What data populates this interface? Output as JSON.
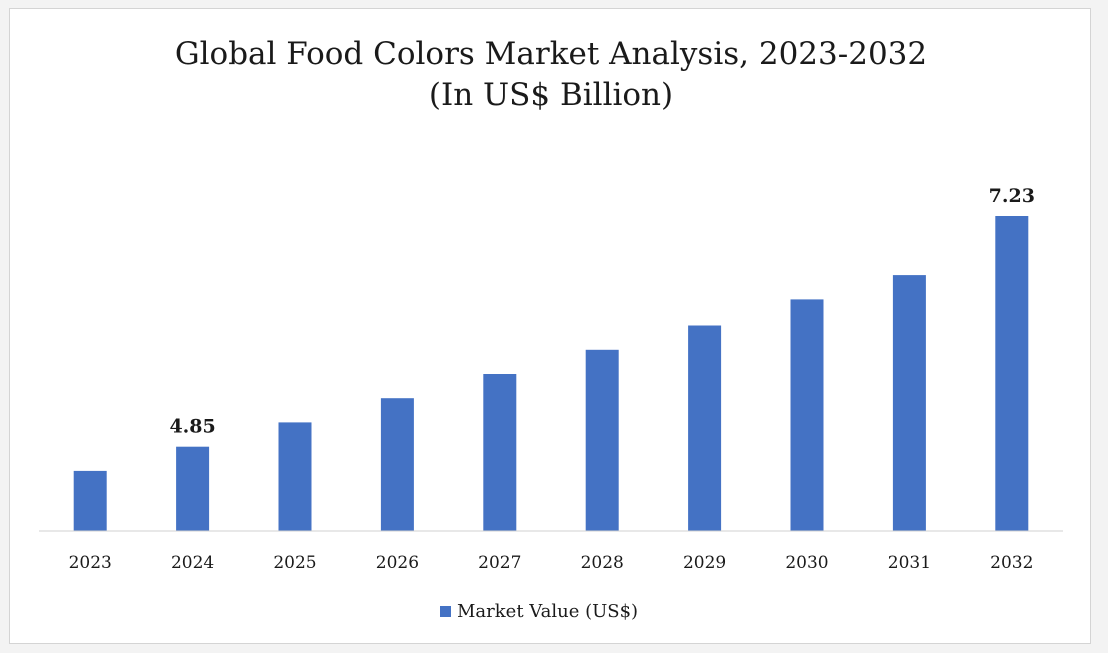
{
  "chart_data": {
    "type": "bar",
    "title": "Global Food Colors Market Analysis, 2023-2032",
    "subtitle": "(In US$ Billion)",
    "categories": [
      "2023",
      "2024",
      "2025",
      "2026",
      "2027",
      "2028",
      "2029",
      "2030",
      "2031",
      "2032"
    ],
    "series": [
      {
        "name": "Market Value (US$)",
        "values": [
          4.6,
          4.85,
          5.1,
          5.35,
          5.6,
          5.85,
          6.1,
          6.37,
          6.62,
          7.23
        ],
        "color": "#4472C4"
      }
    ],
    "data_labels": [
      {
        "category": "2024",
        "text": "4.85"
      },
      {
        "category": "2032",
        "text": "7.23"
      }
    ],
    "ylim": [
      3.98,
      7.23
    ],
    "grid": false,
    "legend_position": "bottom",
    "xlabel": "",
    "ylabel": ""
  }
}
